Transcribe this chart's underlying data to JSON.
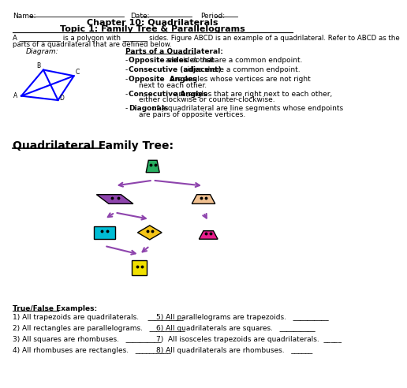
{
  "title1": "Chapter 10: Quadrilaterals",
  "title2": "Topic 1: Family Tree & Parallelograms",
  "name_label": "Name:",
  "date_label": "Date:",
  "period_label": "Period:",
  "intro_line1": "A ____________ is a polygon with _______ sides. Figure ABCD is an example of a quadrilateral. Refer to ABCD as the",
  "intro_line2": "parts of a quadrilateral that are defined below.",
  "diagram_label": "Diagram:",
  "parts_title": "Parts of a Quadrilateral:",
  "family_tree_title": "Quadrilateral Family Tree:",
  "true_false_title": "True/False Examples:",
  "true_false_left": [
    "1) All trapezoids are quadrilaterals.    __________",
    "2) All rectangles are parallelograms.   __________",
    "3) All squares are rhombuses.   __________",
    "4) All rhombuses are rectangles.   __________"
  ],
  "true_false_right": [
    "5) All parallelograms are trapezoids.   __________",
    "6) All quadrilaterals are squares.   __________",
    "7)  All isosceles trapezoids are quadrilaterals.  _____",
    "8) All quadrilaterals are rhombuses.   ______"
  ],
  "arrow_color": "#8e44ad",
  "bg_color": "#ffffff"
}
